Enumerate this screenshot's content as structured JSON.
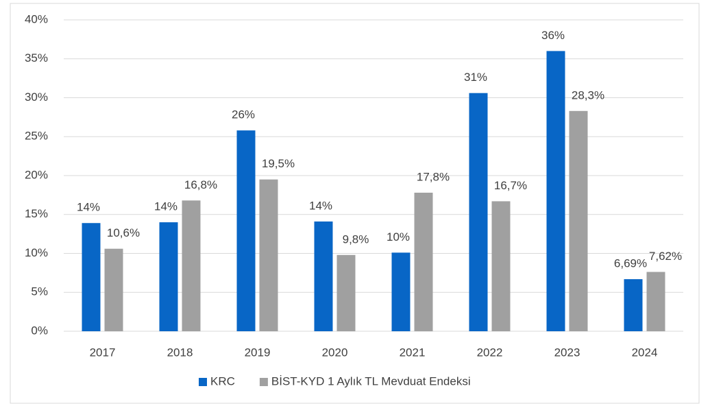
{
  "chart_data": {
    "type": "bar",
    "categories": [
      "2017",
      "2018",
      "2019",
      "2020",
      "2021",
      "2022",
      "2023",
      "2024"
    ],
    "series": [
      {
        "name": "KRC",
        "color": "#0866c6",
        "values": [
          13.9,
          14.0,
          25.8,
          14.1,
          10.1,
          30.6,
          36.0,
          6.69
        ],
        "value_labels": [
          "14%",
          "14%",
          "26%",
          "14%",
          "10%",
          "31%",
          "36%",
          "6,69%"
        ]
      },
      {
        "name": "BİST-KYD 1 Aylık TL Mevduat Endeksi",
        "color": "#a0a0a0",
        "values": [
          10.6,
          16.8,
          19.5,
          9.8,
          17.8,
          16.7,
          28.3,
          7.62
        ],
        "value_labels": [
          "10,6%",
          "16,8%",
          "19,5%",
          "9,8%",
          "17,8%",
          "16,7%",
          "28,3%",
          "7,62%"
        ]
      }
    ],
    "ylim": [
      0,
      40
    ],
    "yticks": [
      {
        "value": 0,
        "label": "0%"
      },
      {
        "value": 5,
        "label": "5%"
      },
      {
        "value": 10,
        "label": "10%"
      },
      {
        "value": 15,
        "label": "15%"
      },
      {
        "value": 20,
        "label": "20%"
      },
      {
        "value": 25,
        "label": "25%"
      },
      {
        "value": 30,
        "label": "30%"
      },
      {
        "value": 35,
        "label": "35%"
      },
      {
        "value": 40,
        "label": "40%"
      }
    ],
    "legend": "bottom"
  }
}
